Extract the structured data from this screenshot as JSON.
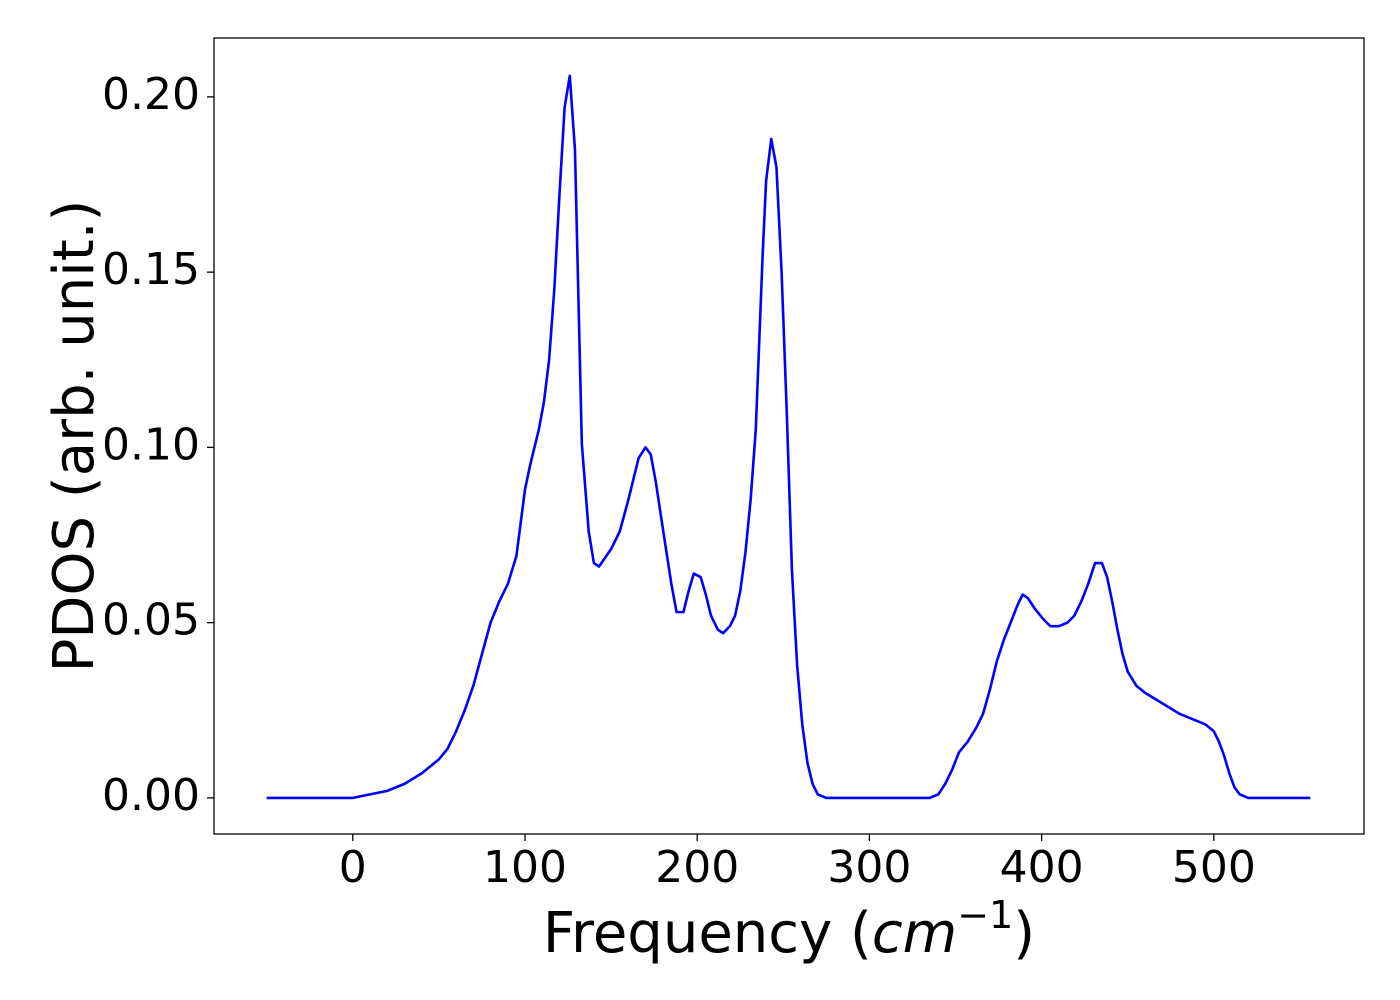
{
  "chart_data": {
    "type": "line",
    "xlabel_parts": [
      "Frequency (",
      "cm",
      "−1",
      ")"
    ],
    "ylabel": "PDOS (arb. unit.)",
    "xlim": [
      -80.6,
      587.2
    ],
    "ylim": [
      -0.0103,
      0.2168
    ],
    "xticks": [
      0,
      100,
      200,
      300,
      400,
      500
    ],
    "yticks": [
      {
        "value": 0,
        "label": "0.00"
      },
      {
        "value": 0.05,
        "label": "0.05"
      },
      {
        "value": 0.1,
        "label": "0.10"
      },
      {
        "value": 0.15,
        "label": "0.15"
      },
      {
        "value": 0.2,
        "label": "0.20"
      }
    ],
    "grid": false,
    "x": [
      -50,
      -25,
      0,
      10,
      20,
      30,
      40,
      50,
      55,
      60,
      65,
      70,
      75,
      80,
      85,
      90,
      95,
      100,
      103,
      108,
      111,
      114,
      117,
      120,
      123,
      126,
      129,
      133,
      137,
      140,
      143,
      150,
      155,
      160,
      166,
      170,
      173,
      176,
      180,
      185,
      188,
      192,
      195,
      198,
      202,
      205,
      208,
      212,
      215,
      219,
      222,
      225,
      228,
      231,
      234,
      236,
      238,
      240,
      243,
      246,
      249,
      252,
      255,
      258,
      261,
      264,
      267,
      270,
      275,
      300,
      335,
      340,
      344,
      348,
      352,
      357,
      362,
      366,
      370,
      374,
      378,
      382,
      386,
      389,
      392,
      396,
      401,
      405,
      410,
      415,
      419,
      423,
      427,
      431,
      435,
      438,
      441,
      444,
      447,
      450,
      455,
      460,
      470,
      480,
      490,
      495,
      500,
      503,
      506,
      509,
      512,
      515,
      520,
      556
    ],
    "series": [
      {
        "name": "PDOS",
        "color": "#0000ff",
        "values": [
          0,
          0,
          0,
          0.001,
          0.002,
          0.004,
          0.007,
          0.011,
          0.014,
          0.019,
          0.025,
          0.032,
          0.041,
          0.05,
          0.056,
          0.061,
          0.069,
          0.088,
          0.095,
          0.105,
          0.113,
          0.125,
          0.145,
          0.172,
          0.197,
          0.206,
          0.185,
          0.101,
          0.076,
          0.067,
          0.066,
          0.071,
          0.076,
          0.085,
          0.097,
          0.1,
          0.098,
          0.09,
          0.077,
          0.061,
          0.053,
          0.053,
          0.059,
          0.064,
          0.063,
          0.058,
          0.052,
          0.048,
          0.047,
          0.049,
          0.052,
          0.059,
          0.07,
          0.085,
          0.105,
          0.13,
          0.155,
          0.176,
          0.188,
          0.18,
          0.15,
          0.11,
          0.065,
          0.038,
          0.021,
          0.01,
          0.004,
          0.001,
          0,
          0,
          0,
          0.001,
          0.004,
          0.008,
          0.013,
          0.016,
          0.02,
          0.024,
          0.031,
          0.039,
          0.045,
          0.05,
          0.055,
          0.058,
          0.057,
          0.054,
          0.051,
          0.049,
          0.049,
          0.05,
          0.052,
          0.056,
          0.061,
          0.067,
          0.067,
          0.063,
          0.056,
          0.048,
          0.041,
          0.036,
          0.032,
          0.03,
          0.027,
          0.024,
          0.022,
          0.021,
          0.019,
          0.016,
          0.012,
          0.007,
          0.003,
          0.001,
          0,
          0
        ]
      }
    ]
  }
}
